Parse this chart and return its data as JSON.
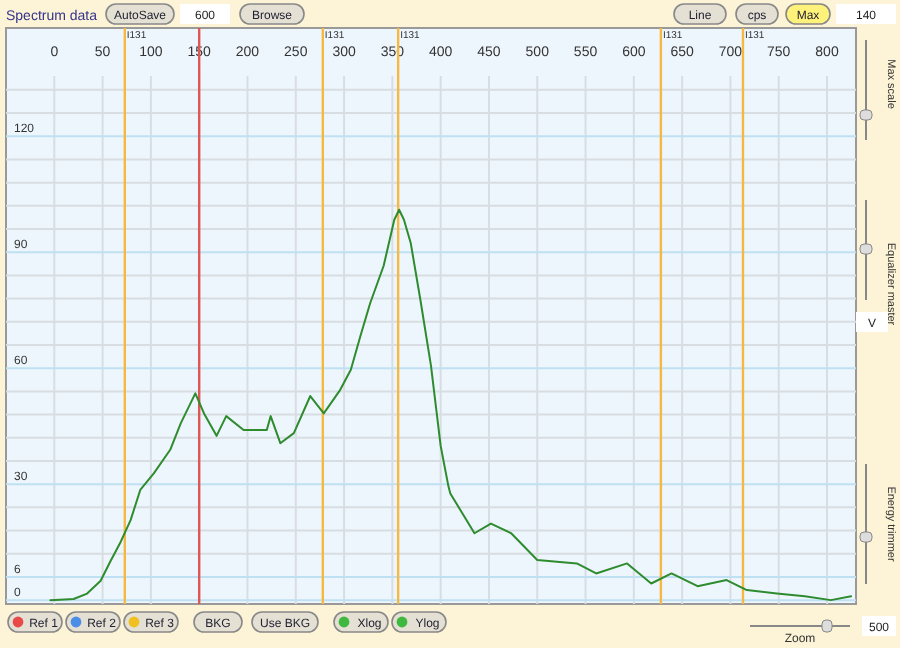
{
  "chart_data": {
    "type": "line",
    "title": "Spectrum data",
    "xlim": [
      -50,
      830
    ],
    "ylim": [
      -1,
      148
    ],
    "xticks": [
      0,
      50,
      100,
      150,
      200,
      250,
      300,
      350,
      400,
      450,
      500,
      550,
      600,
      650,
      700,
      750,
      800
    ],
    "yticks": [
      0,
      6,
      {
        "value": 12,
        "label": null
      },
      {
        "value": 18,
        "label": null
      },
      {
        "value": 24,
        "label": null
      },
      30,
      {
        "value": 36,
        "label": null
      },
      {
        "value": 42,
        "label": null
      },
      {
        "value": 48,
        "label": null
      },
      {
        "value": 54,
        "label": null
      },
      60,
      {
        "value": 66,
        "label": null
      },
      {
        "value": 72,
        "label": null
      },
      {
        "value": 78,
        "label": null
      },
      {
        "value": 84,
        "label": null
      },
      90,
      {
        "value": 96,
        "label": null
      },
      {
        "value": 102,
        "label": null
      },
      {
        "value": 108,
        "label": null
      },
      {
        "value": 114,
        "label": null
      },
      120,
      {
        "value": 126,
        "label": null
      },
      {
        "value": 132,
        "label": null
      }
    ],
    "grid": true,
    "series": [
      {
        "color": "#2e8b2e",
        "x": [
          -4,
          20,
          34,
          48,
          58,
          68,
          79,
          89,
          103,
          120,
          131,
          146,
          155,
          168,
          178,
          196,
          220,
          224,
          234,
          248,
          265,
          279,
          296,
          307,
          317,
          327,
          341,
          352,
          357,
          362,
          369,
          379,
          390,
          400,
          408,
          410,
          435,
          452,
          473,
          500,
          541,
          561,
          593,
          618,
          639,
          666,
          696,
          717,
          748,
          777,
          804,
          825
        ],
        "values": [
          0,
          0.3,
          1.7,
          5,
          10,
          14.7,
          20.7,
          28.5,
          32.8,
          38.9,
          45.8,
          53.5,
          48.3,
          42.5,
          47.6,
          44,
          44,
          47.6,
          40.6,
          43.2,
          52.8,
          48.3,
          54.4,
          59.6,
          68.4,
          76.8,
          86.5,
          98.4,
          101,
          98.4,
          92.4,
          77.7,
          60.6,
          39.9,
          29.5,
          27.6,
          17.3,
          19.8,
          17.3,
          10.4,
          9.5,
          6.9,
          9.5,
          4.3,
          6.9,
          3.6,
          5.2,
          2.6,
          1.7,
          1,
          0,
          1
        ]
      }
    ],
    "ref_lines": [
      {
        "axis": "x",
        "value": 73,
        "label": "I131",
        "color": "#f5b841"
      },
      {
        "axis": "x",
        "value": 150,
        "color": "#e05555"
      },
      {
        "axis": "x",
        "value": 278,
        "label": "I131",
        "color": "#f5b841"
      },
      {
        "axis": "x",
        "value": 356,
        "label": "I131",
        "color": "#f5b841"
      },
      {
        "axis": "x",
        "value": 628,
        "label": "I131",
        "color": "#f5b841"
      },
      {
        "axis": "x",
        "value": 713,
        "label": "I131",
        "color": "#f5b841"
      }
    ],
    "annotations": [
      "AutoSave",
      "600",
      "Browse",
      "Line",
      "cps",
      "Max",
      "140",
      "Max scale",
      "Equalizer master",
      "V",
      "Energy trimmer",
      "Zoom",
      "500",
      "Ref 1",
      "Ref 2",
      "Ref 3",
      "BKG",
      "Use BKG",
      "Xlog",
      "Ylog"
    ]
  }
}
